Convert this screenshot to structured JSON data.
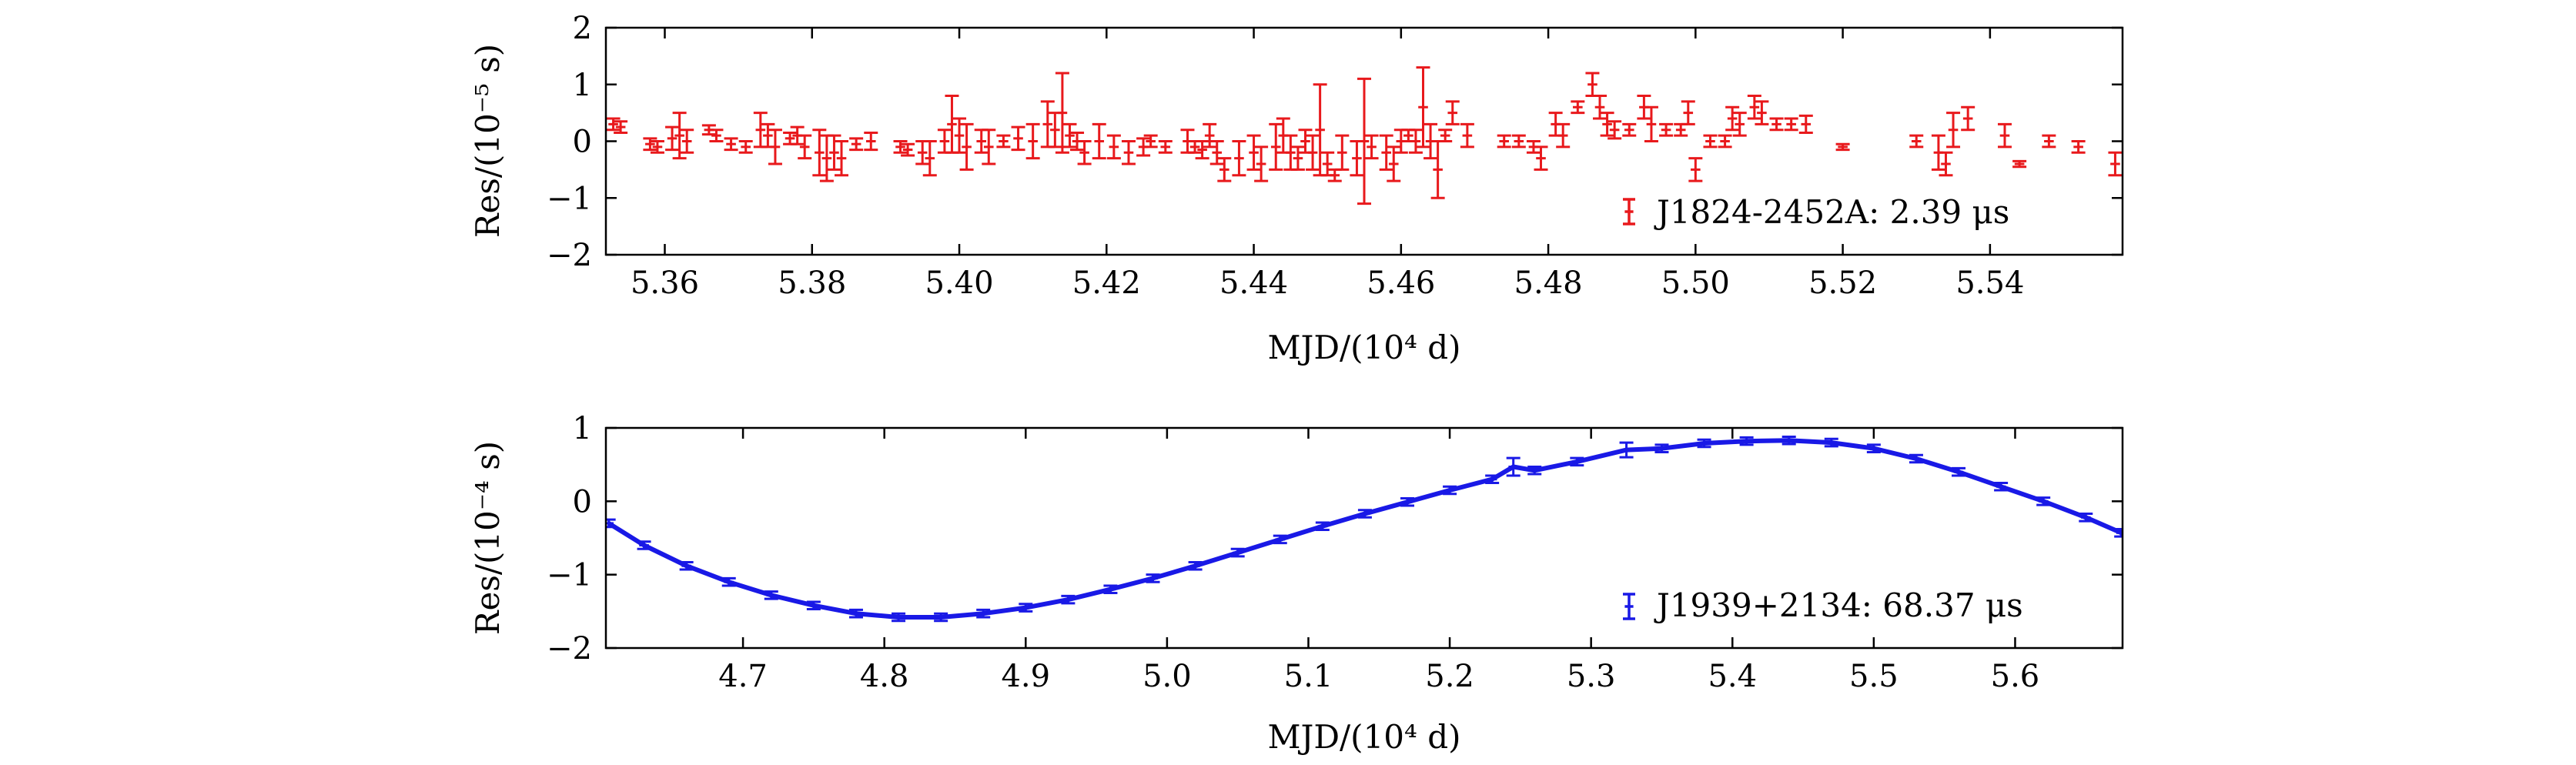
{
  "chart_data": [
    {
      "type": "scatter",
      "error_bars": true,
      "xlabel": "MJD/(10⁴ d)",
      "ylabel": "Res/(10⁻⁵ s)",
      "xlim": [
        5.352,
        5.558
      ],
      "ylim": [
        -2,
        2
      ],
      "xticks": [
        5.36,
        5.38,
        5.4,
        5.42,
        5.44,
        5.46,
        5.48,
        5.5,
        5.52,
        5.54
      ],
      "xtick_labels": [
        "5.36",
        "5.38",
        "5.40",
        "5.42",
        "5.44",
        "5.46",
        "5.48",
        "5.50",
        "5.52",
        "5.54"
      ],
      "yticks": [
        -2,
        -1,
        0,
        1,
        2
      ],
      "ytick_labels": [
        "−2",
        "−1",
        "0",
        "1",
        "2"
      ],
      "grid": false,
      "legend_position": "bottom-right",
      "series": [
        {
          "name": "J1824-2452A: 2.39 μs",
          "color": "#e8191c",
          "points": [
            [
              5.353,
              0.3,
              0.1
            ],
            [
              5.354,
              0.25,
              0.1
            ],
            [
              5.358,
              -0.05,
              0.1
            ],
            [
              5.359,
              -0.1,
              0.1
            ],
            [
              5.361,
              0.05,
              0.2
            ],
            [
              5.362,
              0.1,
              0.4
            ],
            [
              5.363,
              0.0,
              0.2
            ],
            [
              5.366,
              0.2,
              0.08
            ],
            [
              5.367,
              0.1,
              0.1
            ],
            [
              5.369,
              -0.05,
              0.1
            ],
            [
              5.371,
              -0.1,
              0.1
            ],
            [
              5.373,
              0.2,
              0.3
            ],
            [
              5.374,
              0.1,
              0.2
            ],
            [
              5.375,
              -0.1,
              0.3
            ],
            [
              5.377,
              0.05,
              0.1
            ],
            [
              5.378,
              0.1,
              0.15
            ],
            [
              5.379,
              -0.1,
              0.2
            ],
            [
              5.381,
              -0.2,
              0.4
            ],
            [
              5.382,
              -0.3,
              0.4
            ],
            [
              5.383,
              -0.2,
              0.3
            ],
            [
              5.384,
              -0.3,
              0.3
            ],
            [
              5.386,
              -0.05,
              0.1
            ],
            [
              5.388,
              0.0,
              0.15
            ],
            [
              5.392,
              -0.1,
              0.1
            ],
            [
              5.393,
              -0.15,
              0.1
            ],
            [
              5.395,
              -0.2,
              0.2
            ],
            [
              5.396,
              -0.3,
              0.3
            ],
            [
              5.398,
              0.0,
              0.2
            ],
            [
              5.399,
              0.3,
              0.5
            ],
            [
              5.4,
              0.1,
              0.3
            ],
            [
              5.401,
              -0.1,
              0.4
            ],
            [
              5.403,
              0.0,
              0.2
            ],
            [
              5.404,
              -0.1,
              0.3
            ],
            [
              5.406,
              0.0,
              0.1
            ],
            [
              5.408,
              0.05,
              0.2
            ],
            [
              5.41,
              0.0,
              0.3
            ],
            [
              5.412,
              0.3,
              0.4
            ],
            [
              5.413,
              0.2,
              0.3
            ],
            [
              5.414,
              0.5,
              0.7
            ],
            [
              5.415,
              0.1,
              0.2
            ],
            [
              5.416,
              0.0,
              0.15
            ],
            [
              5.417,
              -0.2,
              0.2
            ],
            [
              5.419,
              0.0,
              0.3
            ],
            [
              5.421,
              -0.1,
              0.2
            ],
            [
              5.423,
              -0.2,
              0.2
            ],
            [
              5.425,
              -0.1,
              0.15
            ],
            [
              5.426,
              0.0,
              0.1
            ],
            [
              5.428,
              -0.1,
              0.1
            ],
            [
              5.431,
              0.0,
              0.2
            ],
            [
              5.432,
              -0.1,
              0.1
            ],
            [
              5.433,
              -0.15,
              0.15
            ],
            [
              5.434,
              0.1,
              0.2
            ],
            [
              5.435,
              -0.2,
              0.2
            ],
            [
              5.436,
              -0.5,
              0.2
            ],
            [
              5.438,
              -0.3,
              0.3
            ],
            [
              5.44,
              -0.2,
              0.3
            ],
            [
              5.441,
              -0.4,
              0.3
            ],
            [
              5.443,
              -0.1,
              0.4
            ],
            [
              5.444,
              0.1,
              0.3
            ],
            [
              5.445,
              -0.2,
              0.3
            ],
            [
              5.446,
              -0.3,
              0.2
            ],
            [
              5.447,
              0.0,
              0.2
            ],
            [
              5.448,
              -0.2,
              0.3
            ],
            [
              5.449,
              0.2,
              0.8
            ],
            [
              5.45,
              -0.4,
              0.2
            ],
            [
              5.451,
              -0.6,
              0.1
            ],
            [
              5.452,
              -0.2,
              0.3
            ],
            [
              5.454,
              -0.3,
              0.3
            ],
            [
              5.455,
              0.0,
              1.1
            ],
            [
              5.456,
              -0.1,
              0.2
            ],
            [
              5.458,
              -0.2,
              0.3
            ],
            [
              5.459,
              -0.4,
              0.3
            ],
            [
              5.46,
              0.0,
              0.2
            ],
            [
              5.461,
              0.1,
              0.1
            ],
            [
              5.462,
              0.0,
              0.2
            ],
            [
              5.463,
              0.6,
              0.7
            ],
            [
              5.464,
              0.0,
              0.3
            ],
            [
              5.465,
              -0.5,
              0.5
            ],
            [
              5.466,
              0.1,
              0.1
            ],
            [
              5.467,
              0.5,
              0.2
            ],
            [
              5.469,
              0.1,
              0.2
            ],
            [
              5.474,
              0.0,
              0.1
            ],
            [
              5.476,
              0.0,
              0.1
            ],
            [
              5.478,
              -0.1,
              0.1
            ],
            [
              5.479,
              -0.3,
              0.2
            ],
            [
              5.481,
              0.3,
              0.2
            ],
            [
              5.482,
              0.1,
              0.2
            ],
            [
              5.484,
              0.6,
              0.1
            ],
            [
              5.486,
              1.0,
              0.2
            ],
            [
              5.487,
              0.6,
              0.2
            ],
            [
              5.488,
              0.3,
              0.2
            ],
            [
              5.489,
              0.2,
              0.15
            ],
            [
              5.491,
              0.2,
              0.1
            ],
            [
              5.493,
              0.6,
              0.2
            ],
            [
              5.494,
              0.3,
              0.3
            ],
            [
              5.496,
              0.2,
              0.1
            ],
            [
              5.498,
              0.2,
              0.1
            ],
            [
              5.499,
              0.5,
              0.2
            ],
            [
              5.5,
              -0.5,
              0.2
            ],
            [
              5.502,
              0.0,
              0.1
            ],
            [
              5.504,
              0.0,
              0.1
            ],
            [
              5.505,
              0.4,
              0.2
            ],
            [
              5.506,
              0.3,
              0.2
            ],
            [
              5.508,
              0.6,
              0.2
            ],
            [
              5.509,
              0.5,
              0.2
            ],
            [
              5.511,
              0.3,
              0.1
            ],
            [
              5.513,
              0.3,
              0.1
            ],
            [
              5.515,
              0.3,
              0.15
            ],
            [
              5.52,
              -0.1,
              0.05
            ],
            [
              5.53,
              0.0,
              0.1
            ],
            [
              5.533,
              -0.2,
              0.3
            ],
            [
              5.534,
              -0.4,
              0.2
            ],
            [
              5.535,
              0.2,
              0.3
            ],
            [
              5.537,
              0.4,
              0.2
            ],
            [
              5.542,
              0.1,
              0.2
            ],
            [
              5.544,
              -0.4,
              0.05
            ],
            [
              5.548,
              0.0,
              0.1
            ],
            [
              5.552,
              -0.1,
              0.1
            ],
            [
              5.557,
              -0.4,
              0.2
            ]
          ]
        }
      ]
    },
    {
      "type": "scatter",
      "error_bars": true,
      "xlabel": "MJD/(10⁴ d)",
      "ylabel": "Res/(10⁻⁴ s)",
      "xlim": [
        4.603,
        5.676
      ],
      "ylim": [
        -2,
        1
      ],
      "xticks": [
        4.7,
        4.8,
        4.9,
        5.0,
        5.1,
        5.2,
        5.3,
        5.4,
        5.5,
        5.6
      ],
      "xtick_labels": [
        "4.7",
        "4.8",
        "4.9",
        "5.0",
        "5.1",
        "5.2",
        "5.3",
        "5.4",
        "5.5",
        "5.6"
      ],
      "yticks": [
        -2,
        -1,
        0,
        1
      ],
      "ytick_labels": [
        "−2",
        "−1",
        "0",
        "1"
      ],
      "grid": false,
      "legend_position": "bottom-right",
      "series": [
        {
          "name": "J1939+2134: 68.37 μs",
          "color": "#1919e6",
          "points": [
            [
              4.605,
              -0.3,
              0.05
            ],
            [
              4.63,
              -0.6,
              0.05
            ],
            [
              4.66,
              -0.88,
              0.05
            ],
            [
              4.69,
              -1.1,
              0.05
            ],
            [
              4.72,
              -1.28,
              0.05
            ],
            [
              4.75,
              -1.42,
              0.05
            ],
            [
              4.78,
              -1.53,
              0.05
            ],
            [
              4.81,
              -1.58,
              0.05
            ],
            [
              4.84,
              -1.58,
              0.05
            ],
            [
              4.87,
              -1.53,
              0.05
            ],
            [
              4.9,
              -1.45,
              0.05
            ],
            [
              4.93,
              -1.34,
              0.05
            ],
            [
              4.96,
              -1.2,
              0.05
            ],
            [
              4.99,
              -1.05,
              0.05
            ],
            [
              5.02,
              -0.88,
              0.05
            ],
            [
              5.05,
              -0.7,
              0.05
            ],
            [
              5.08,
              -0.52,
              0.05
            ],
            [
              5.11,
              -0.34,
              0.05
            ],
            [
              5.14,
              -0.17,
              0.05
            ],
            [
              5.17,
              -0.01,
              0.05
            ],
            [
              5.2,
              0.15,
              0.05
            ],
            [
              5.23,
              0.3,
              0.05
            ],
            [
              5.245,
              0.47,
              0.12
            ],
            [
              5.26,
              0.42,
              0.05
            ],
            [
              5.29,
              0.54,
              0.05
            ],
            [
              5.325,
              0.7,
              0.1
            ],
            [
              5.35,
              0.72,
              0.05
            ],
            [
              5.38,
              0.79,
              0.05
            ],
            [
              5.41,
              0.82,
              0.05
            ],
            [
              5.44,
              0.83,
              0.05
            ],
            [
              5.47,
              0.8,
              0.05
            ],
            [
              5.5,
              0.72,
              0.05
            ],
            [
              5.53,
              0.58,
              0.05
            ],
            [
              5.56,
              0.4,
              0.05
            ],
            [
              5.59,
              0.2,
              0.05
            ],
            [
              5.62,
              0.0,
              0.05
            ],
            [
              5.65,
              -0.22,
              0.05
            ],
            [
              5.675,
              -0.43,
              0.05
            ]
          ]
        }
      ]
    }
  ]
}
